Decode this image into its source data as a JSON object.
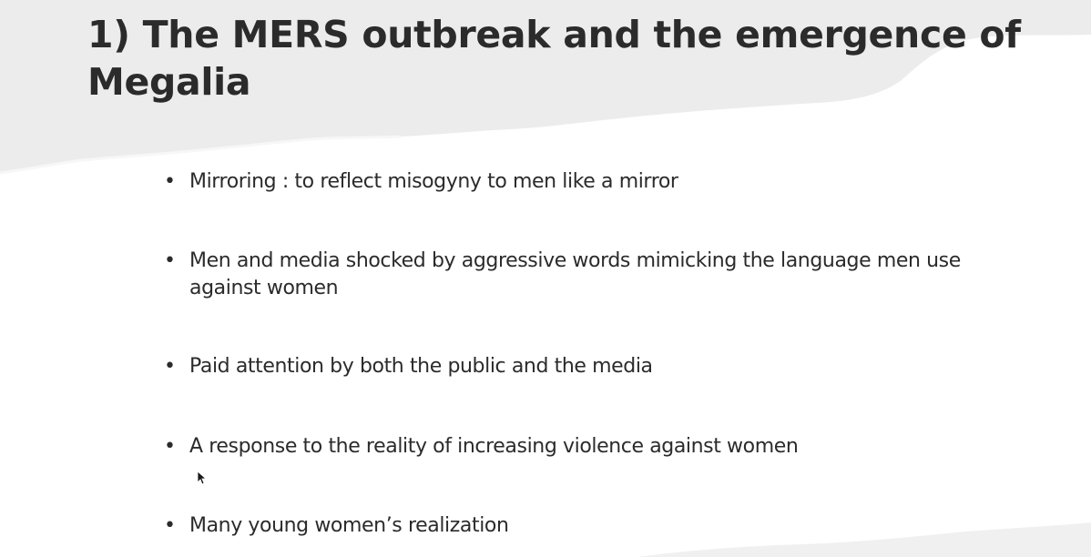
{
  "slide": {
    "title": "1) The MERS outbreak and the emergence of Megalia",
    "bullets": [
      "Mirroring : to reflect misogyny to men like a mirror",
      "Men and media shocked by aggressive words mimicking the language men use against women",
      "Paid attention by both the public and the media",
      "A response to the reality of increasing violence against women",
      "Many young women’s realization"
    ],
    "bullet_glyph": "•",
    "colors": {
      "background": "#ffffff",
      "torn_band": "#ececec",
      "text": "#2b2b2b"
    }
  },
  "icons": {
    "cursor": "mouse-pointer-icon"
  }
}
